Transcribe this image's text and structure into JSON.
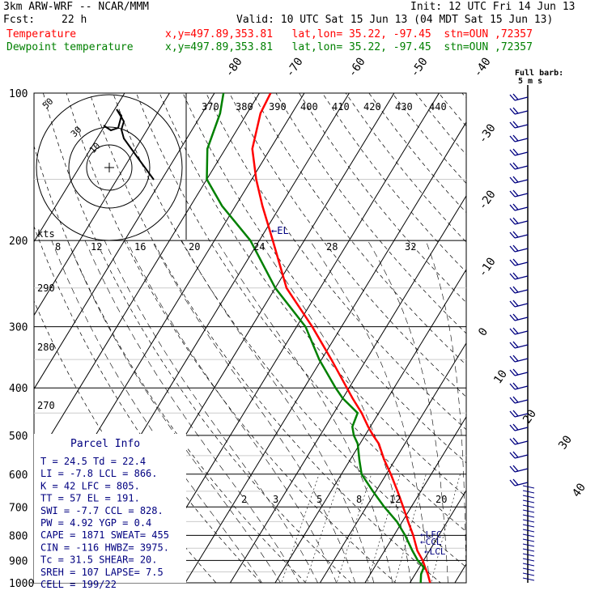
{
  "header": {
    "model": "3km ARW-WRF -- NCAR/MMM",
    "init": "Init: 12 UTC Fri 14 Jun 13",
    "fcst_label": "Fcst:",
    "fcst_value": "22 h",
    "valid": "Valid: 10 UTC Sat 15 Jun 13 (04 MDT Sat 15 Jun 13)",
    "temp_label": "Temperature",
    "temp_info": "x,y=497.89,353.81   lat,lon= 35.22, -97.45  stn=OUN ,72357",
    "dew_label": "Dewpoint temperature",
    "dew_info": "x,y=497.89,353.81   lat,lon= 35.22, -97.45  stn=OUN ,72357"
  },
  "colors": {
    "temperature": "#ff0000",
    "dewpoint": "#008000",
    "parcel": "#000080",
    "background_lines": "#000000"
  },
  "chart_data": {
    "type": "line",
    "pressure_ticks": [
      "100",
      "200",
      "300",
      "400",
      "500",
      "600",
      "700",
      "800",
      "900",
      "1000"
    ],
    "temperature_ticks": [
      "-80",
      "-70",
      "-60",
      "-50",
      "-40",
      "-30",
      "-20",
      "-10",
      "0",
      "10",
      "20",
      "30",
      "40"
    ],
    "theta_labels": [
      "370",
      "380",
      "390",
      "400",
      "410",
      "420",
      "430",
      "440"
    ],
    "mixing_ratio_labels": [
      "2",
      "3",
      "5",
      "8",
      "12",
      "20"
    ],
    "hodo_speed_ticks": [
      "8",
      "12",
      "16",
      "20",
      "24",
      "28",
      "32"
    ],
    "hodo_kts_label": "kts",
    "hodo_ring_labels": [
      "50",
      "30",
      "10"
    ],
    "theta_e_labels": [
      "290",
      "280",
      "270"
    ],
    "level_labels": {
      "el": "EL",
      "lfc": "LFC",
      "ccl": "CCL",
      "lcl": "LCL"
    },
    "wind_barb_legend": [
      "Full barb:",
      "5 m s"
    ],
    "series": [
      {
        "name": "Temperature",
        "pressure": [
          1000,
          960,
          930,
          900,
          860,
          800,
          750,
          700,
          650,
          600,
          560,
          520,
          500,
          480,
          450,
          420,
          400,
          350,
          300,
          250,
          200,
          170,
          150,
          130,
          110,
          100
        ],
        "values": [
          24.5,
          22.8,
          21.3,
          19.8,
          17.3,
          14.3,
          11.3,
          8.2,
          4.8,
          1.0,
          -2.5,
          -5.8,
          -8.2,
          -10.5,
          -13.8,
          -17.8,
          -20.5,
          -27.8,
          -36.5,
          -47.5,
          -57.0,
          -64.0,
          -69.0,
          -74.0,
          -77.0,
          -77.5
        ]
      },
      {
        "name": "Dewpoint temperature",
        "pressure": [
          1000,
          960,
          930,
          900,
          860,
          800,
          750,
          700,
          650,
          600,
          560,
          520,
          500,
          480,
          450,
          420,
          400,
          350,
          300,
          250,
          200,
          170,
          150,
          130,
          110,
          100
        ],
        "values": [
          22.4,
          21.3,
          21.0,
          18.7,
          16.2,
          12.5,
          8.8,
          4.0,
          -0.7,
          -5.5,
          -8.0,
          -10.5,
          -12.5,
          -14.0,
          -14.7,
          -20.0,
          -23.0,
          -30.5,
          -38.0,
          -50.0,
          -62.0,
          -73.0,
          -80.0,
          -84.0,
          -86.0,
          -88.0
        ]
      }
    ],
    "xlim": [
      -40,
      40
    ],
    "ylim": [
      1000,
      100
    ]
  },
  "parcel_info": {
    "title": "Parcel Info",
    "rows": [
      "T   =   24.5  Td =  22.4",
      "LI  =   -7.8  LCL =  866.",
      "K   =     42  LFC =  805.",
      "TT  =     57  EL  =  191.",
      "SWI =   -7.7  CCL =  828.",
      "PW  =   4.92  YGP =   0.4",
      "CAPE =  1871  SWEAT=  455",
      "CIN  =  -116  HWBZ= 3975.",
      "Tc  =   31.5  SHEAR=  20.",
      "SREH =   107  LAPSE=  7.5",
      "CELL = 199/22"
    ]
  }
}
